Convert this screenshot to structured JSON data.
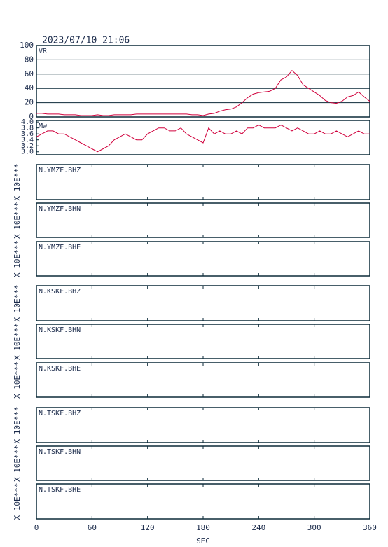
{
  "chart_data": {
    "type": "line",
    "title": "2023/07/10 21:06",
    "xlabel": "SEC",
    "xlim": [
      0,
      360
    ],
    "xticks": [
      0,
      60,
      120,
      180,
      240,
      300,
      360
    ],
    "x": [
      0,
      6,
      12,
      18,
      24,
      30,
      36,
      42,
      48,
      54,
      60,
      66,
      72,
      78,
      84,
      90,
      96,
      102,
      108,
      114,
      120,
      126,
      132,
      138,
      144,
      150,
      156,
      162,
      168,
      174,
      180,
      186,
      192,
      198,
      204,
      210,
      216,
      222,
      228,
      234,
      240,
      246,
      252,
      258,
      264,
      270,
      276,
      282,
      288,
      294,
      300,
      306,
      312,
      318,
      324,
      330,
      336,
      342,
      348,
      354,
      360
    ],
    "panels": [
      {
        "ylim": [
          0,
          100
        ],
        "yticks": [
          0,
          20,
          40,
          60,
          80,
          100
        ],
        "grid": true,
        "series": [
          {
            "name": "VR",
            "color": "#d0003c",
            "values": [
              5,
              5,
              4,
              4,
              4,
              3,
              3,
              3,
              2,
              2,
              2,
              3,
              2,
              2,
              3,
              3,
              3,
              3,
              4,
              4,
              4,
              4,
              4,
              4,
              4,
              4,
              4,
              4,
              3,
              3,
              2,
              4,
              5,
              8,
              10,
              11,
              14,
              20,
              27,
              32,
              34,
              35,
              36,
              40,
              52,
              56,
              65,
              58,
              45,
              40,
              35,
              30,
              23,
              20,
              19,
              22,
              28,
              30,
              35,
              28,
              22
            ]
          }
        ]
      },
      {
        "ylim": [
          2.9,
          4.05
        ],
        "yticks": [
          {
            "value": 3,
            "label": "3.0"
          },
          {
            "value": 3.2,
            "label": "3.2"
          },
          {
            "value": 3.4,
            "label": "3.4"
          },
          {
            "value": 3.6,
            "label": "3.6"
          },
          {
            "value": 3.8,
            "label": "3.8"
          },
          {
            "value": 4,
            "label": "4.0"
          }
        ],
        "grid": false,
        "series": [
          {
            "name": "Mw",
            "color": "#d0003c",
            "values": [
              3.5,
              3.6,
              3.7,
              3.7,
              3.6,
              3.6,
              3.5,
              3.4,
              3.3,
              3.2,
              3.1,
              3.0,
              3.1,
              3.2,
              3.4,
              3.5,
              3.6,
              3.5,
              3.4,
              3.4,
              3.6,
              3.7,
              3.8,
              3.8,
              3.7,
              3.7,
              3.8,
              3.6,
              3.5,
              3.4,
              3.3,
              3.8,
              3.6,
              3.7,
              3.6,
              3.6,
              3.7,
              3.6,
              3.8,
              3.8,
              3.9,
              3.8,
              3.8,
              3.8,
              3.9,
              3.8,
              3.7,
              3.8,
              3.7,
              3.6,
              3.6,
              3.7,
              3.6,
              3.6,
              3.7,
              3.6,
              3.5,
              3.6,
              3.7,
              3.6,
              3.6
            ]
          }
        ]
      }
    ],
    "waveforms": [
      {
        "label": "N.YMZF.BHZ",
        "scale": "X 10E***"
      },
      {
        "label": "N.YMZF.BHN",
        "scale": "X 10E***"
      },
      {
        "label": "N.YMZF.BHE",
        "scale": "X 10E***"
      },
      {
        "label": "N.KSKF.BHZ",
        "scale": "X 10E***"
      },
      {
        "label": "N.KSKF.BHN",
        "scale": "X 10E***"
      },
      {
        "label": "N.KSKF.BHE",
        "scale": "X 10E***"
      },
      {
        "label": "N.TSKF.BHZ",
        "scale": "X 10E***"
      },
      {
        "label": "N.TSKF.BHN",
        "scale": "X 10E***"
      },
      {
        "label": "N.TSKF.BHE",
        "scale": "X 10E***"
      }
    ]
  }
}
